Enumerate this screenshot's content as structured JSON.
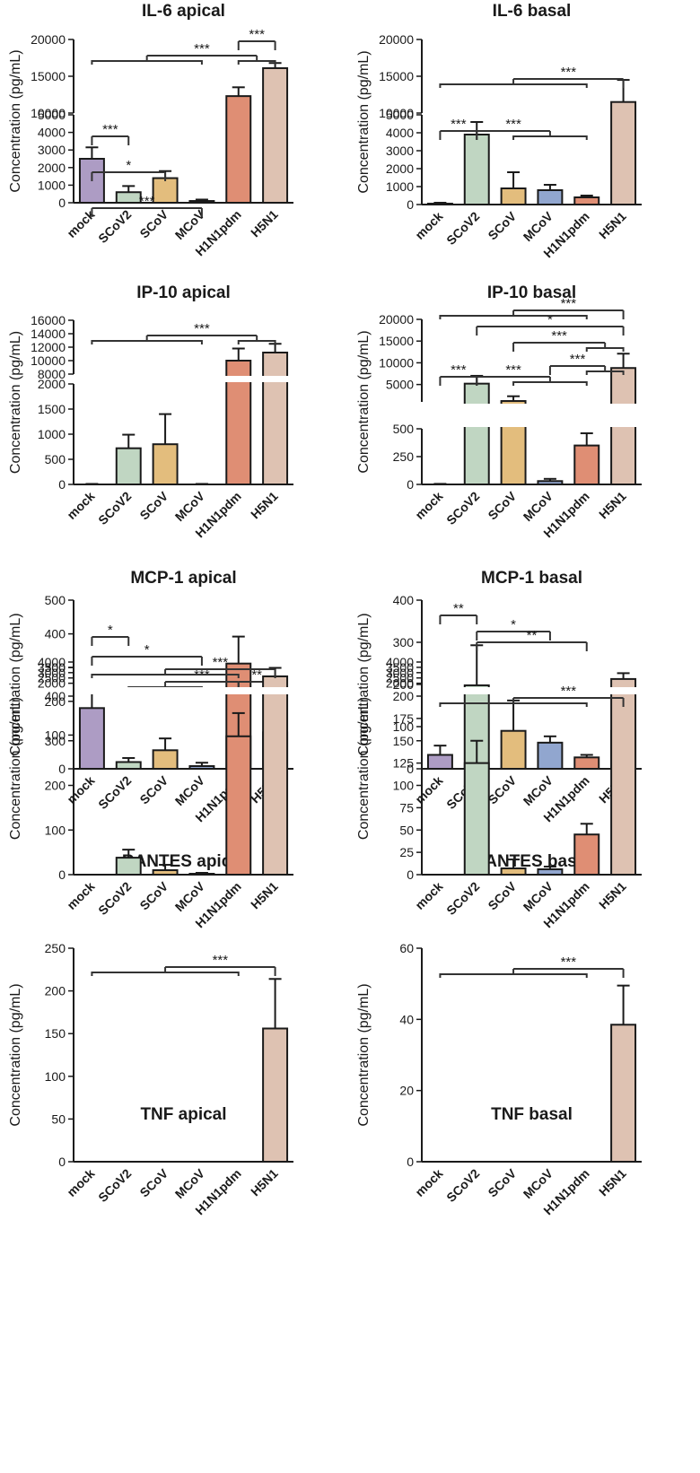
{
  "colors": {
    "mock": "#ad9cc4",
    "SCoV2": "#c0d6c2",
    "SCoV": "#e3bd7d",
    "MCoV": "#91a6cf",
    "H1N1pdm": "#df8e74",
    "H5N1": "#dec2b2",
    "axis": "#1a1a1a",
    "bracket": "#333333"
  },
  "chart_data": [
    {
      "type": "bar",
      "title": "IL-6 apical",
      "ylabel": "Concentration (pg/mL)",
      "categories": [
        "mock",
        "SCoV2",
        "SCoV",
        "MCoV",
        "H1N1pdm",
        "H5N1"
      ],
      "values": [
        2500,
        600,
        1400,
        100,
        12300,
        16100
      ],
      "errors": [
        650,
        350,
        400,
        80,
        1200,
        700
      ],
      "segments": [
        {
          "range": [
            0,
            5000
          ],
          "ticks": [
            0,
            1000,
            2000,
            3000,
            4000,
            5000
          ]
        },
        {
          "range": [
            10000,
            20000
          ],
          "ticks": [
            10000,
            15000,
            20000
          ]
        }
      ],
      "significance": [
        {
          "label": "***",
          "left": [
            0
          ],
          "right": [
            1
          ]
        },
        {
          "label": "*",
          "left": [
            0
          ],
          "right": [
            2
          ]
        },
        {
          "label": "***",
          "left": [
            0
          ],
          "right": [
            3
          ]
        },
        {
          "label": "***",
          "left": [
            0,
            1,
            2,
            3
          ],
          "right": [
            4,
            5
          ]
        },
        {
          "label": "***",
          "left": [
            4
          ],
          "right": [
            5
          ]
        }
      ]
    },
    {
      "type": "bar",
      "title": "IL-6 basal",
      "ylabel": "Concentration (pg/mL)",
      "categories": [
        "mock",
        "SCoV2",
        "SCoV",
        "MCoV",
        "H1N1pdm",
        "H5N1"
      ],
      "values": [
        50,
        3900,
        900,
        800,
        400,
        11500
      ],
      "errors": [
        50,
        700,
        900,
        300,
        100,
        3000
      ],
      "segments": [
        {
          "range": [
            0,
            5000
          ],
          "ticks": [
            0,
            1000,
            2000,
            3000,
            4000,
            5000
          ]
        },
        {
          "range": [
            10000,
            20000
          ],
          "ticks": [
            10000,
            15000,
            20000
          ]
        }
      ],
      "significance": [
        {
          "label": "***",
          "left": [
            0
          ],
          "right": [
            1
          ]
        },
        {
          "label": "***",
          "left": [
            1
          ],
          "right": [
            2,
            3,
            4
          ]
        },
        {
          "label": "***",
          "left": [
            0,
            1,
            2,
            3,
            4
          ],
          "right": [
            5
          ]
        }
      ]
    },
    {
      "type": "bar",
      "title": "IP-10 apical",
      "ylabel": "Concentration (pg/mL)",
      "categories": [
        "mock",
        "SCoV2",
        "SCoV",
        "MCoV",
        "H1N1pdm",
        "H5N1"
      ],
      "values": [
        0,
        720,
        800,
        0,
        10000,
        11200
      ],
      "errors": [
        10,
        270,
        600,
        10,
        1800,
        1300
      ],
      "segments": [
        {
          "range": [
            0,
            2000
          ],
          "ticks": [
            0,
            500,
            1000,
            1500,
            2000
          ]
        },
        {
          "range": [
            8000,
            16000
          ],
          "ticks": [
            8000,
            10000,
            12000,
            14000,
            16000
          ]
        }
      ],
      "significance": [
        {
          "label": "***",
          "left": [
            0,
            1,
            2,
            3
          ],
          "right": [
            4,
            5
          ]
        }
      ]
    },
    {
      "type": "bar",
      "title": "IP-10 basal",
      "ylabel": "Concentration (pg/mL)",
      "categories": [
        "mock",
        "SCoV2",
        "SCoV",
        "MCoV",
        "H1N1pdm",
        "H5N1"
      ],
      "values": [
        0,
        5200,
        1200,
        30,
        350,
        8800
      ],
      "errors": [
        5,
        1800,
        1100,
        20,
        110,
        3300
      ],
      "segments": [
        {
          "range": [
            0,
            500
          ],
          "ticks": [
            0,
            250,
            500
          ]
        },
        {
          "range": [
            1000,
            20000
          ],
          "ticks": [
            5000,
            10000,
            15000,
            20000
          ]
        }
      ],
      "significance": [
        {
          "label": "***",
          "left": [
            0
          ],
          "right": [
            1
          ]
        },
        {
          "label": "***",
          "left": [
            1
          ],
          "right": [
            2,
            3,
            4
          ]
        },
        {
          "label": "***",
          "left": [
            3
          ],
          "right": [
            4,
            5
          ]
        },
        {
          "label": "***",
          "left": [
            2
          ],
          "right": [
            4,
            5
          ]
        },
        {
          "label": "*",
          "left": [
            1
          ],
          "right": [
            5
          ]
        },
        {
          "label": "***",
          "left": [
            0,
            1,
            2,
            3,
            4
          ],
          "right": [
            5
          ]
        }
      ]
    },
    {
      "type": "bar",
      "title": "MCP-1 apical",
      "ylabel": "Concentration (pg/mL)",
      "categories": [
        "mock",
        "SCoV2",
        "SCoV",
        "MCoV",
        "H1N1pdm",
        "H5N1"
      ],
      "values": [
        180,
        20,
        55,
        8,
        312,
        108
      ],
      "errors": [
        52,
        12,
        35,
        10,
        80,
        58
      ],
      "segments": [
        {
          "range": [
            0,
            500
          ],
          "ticks": [
            0,
            100,
            200,
            300,
            400,
            500
          ]
        }
      ],
      "significance": [
        {
          "label": "*",
          "left": [
            0
          ],
          "right": [
            1
          ]
        },
        {
          "label": "*",
          "left": [
            0
          ],
          "right": [
            3
          ]
        },
        {
          "label": "***",
          "left": [
            1,
            2,
            3
          ],
          "right": [
            4
          ]
        },
        {
          "label": "**",
          "left": [
            4
          ],
          "right": [
            5
          ]
        }
      ]
    },
    {
      "type": "bar",
      "title": "MCP-1 basal",
      "ylabel": "Concentration (pg/mL)",
      "categories": [
        "mock",
        "SCoV2",
        "SCoV",
        "MCoV",
        "H1N1pdm",
        "H5N1"
      ],
      "values": [
        33,
        198,
        90,
        62,
        27,
        90
      ],
      "errors": [
        22,
        95,
        72,
        15,
        6,
        15
      ],
      "segments": [
        {
          "range": [
            0,
            400
          ],
          "ticks": [
            0,
            100,
            200,
            300,
            400
          ]
        }
      ],
      "significance": [
        {
          "label": "**",
          "left": [
            0
          ],
          "right": [
            1
          ]
        },
        {
          "label": "*",
          "left": [
            1
          ],
          "right": [
            3
          ]
        },
        {
          "label": "**",
          "left": [
            1
          ],
          "right": [
            4
          ]
        }
      ]
    },
    {
      "type": "bar",
      "title": "RANTES apical",
      "ylabel": "Concentration (pg/mL)",
      "categories": [
        "mock",
        "SCoV2",
        "SCoV",
        "MCoV",
        "H1N1pdm",
        "H5N1"
      ],
      "values": [
        0,
        38,
        10,
        2,
        310,
        2650
      ],
      "errors": [
        0,
        18,
        12,
        2,
        52,
        800
      ],
      "segments": [
        {
          "range": [
            0,
            400
          ],
          "ticks": [
            0,
            100,
            200,
            300,
            400
          ]
        },
        {
          "range": [
            1800,
            4000
          ],
          "ticks": [
            2000,
            2500,
            3000,
            3500,
            4000
          ]
        }
      ],
      "significance": [
        {
          "label": "***",
          "left": [
            0,
            1,
            2,
            3,
            4
          ],
          "right": [
            5
          ]
        }
      ]
    },
    {
      "type": "bar",
      "title": "RANTES basal",
      "ylabel": "Concentration (pg/mL)",
      "categories": [
        "mock",
        "SCoV2",
        "SCoV",
        "MCoV",
        "H1N1pdm",
        "H5N1"
      ],
      "values": [
        0,
        125,
        7,
        6,
        45,
        2400
      ],
      "errors": [
        0,
        25,
        10,
        3,
        12,
        550
      ],
      "segments": [
        {
          "range": [
            0,
            200
          ],
          "ticks": [
            0,
            25,
            50,
            75,
            100,
            125,
            150,
            175,
            200
          ]
        },
        {
          "range": [
            1800,
            4000
          ],
          "ticks": [
            2000,
            2500,
            3000,
            3500,
            4000
          ]
        }
      ],
      "significance": [
        {
          "label": "***",
          "left": [
            0,
            1,
            2,
            3,
            4
          ],
          "right": [
            5
          ]
        }
      ]
    },
    {
      "type": "bar",
      "title": "TNF apical",
      "ylabel": "Concentration (pg/mL)",
      "categories": [
        "mock",
        "SCoV2",
        "SCoV",
        "MCoV",
        "H1N1pdm",
        "H5N1"
      ],
      "values": [
        0,
        0,
        0,
        0,
        0,
        156
      ],
      "errors": [
        0,
        0,
        0,
        0,
        0,
        58
      ],
      "segments": [
        {
          "range": [
            0,
            250
          ],
          "ticks": [
            0,
            50,
            100,
            150,
            200,
            250
          ]
        }
      ],
      "significance": [
        {
          "label": "***",
          "left": [
            0,
            1,
            2,
            3,
            4
          ],
          "right": [
            5
          ]
        }
      ]
    },
    {
      "type": "bar",
      "title": "TNF basal",
      "ylabel": "Concentration (pg/mL)",
      "categories": [
        "mock",
        "SCoV2",
        "SCoV",
        "MCoV",
        "H1N1pdm",
        "H5N1"
      ],
      "values": [
        0,
        0,
        0,
        0,
        0,
        38.5
      ],
      "errors": [
        0,
        0,
        0,
        0,
        0,
        11
      ],
      "segments": [
        {
          "range": [
            0,
            60
          ],
          "ticks": [
            0,
            20,
            40,
            60
          ]
        }
      ],
      "significance": [
        {
          "label": "***",
          "left": [
            0,
            1,
            2,
            3,
            4
          ],
          "right": [
            5
          ]
        }
      ]
    }
  ]
}
